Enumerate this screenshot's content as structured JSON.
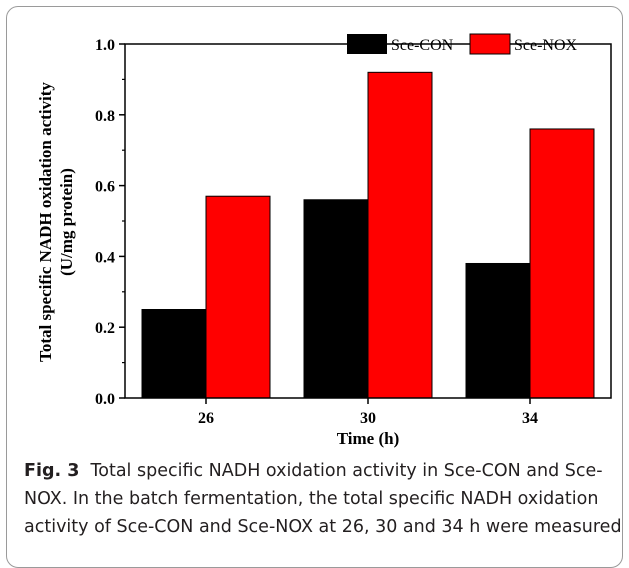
{
  "chart_data": {
    "type": "bar",
    "categories": [
      "26",
      "30",
      "34"
    ],
    "series": [
      {
        "name": "Sce-CON",
        "values": [
          0.25,
          0.56,
          0.38
        ],
        "color": "#000000"
      },
      {
        "name": "Sce-NOX",
        "values": [
          0.57,
          0.92,
          0.76
        ],
        "color": "#ff0000"
      }
    ],
    "xlabel": "Time (h)",
    "ylabel": "Total specific NADH oxidation activity",
    "ylabel_unit": "(U/mg protein)",
    "ylim": [
      0,
      1.0
    ],
    "yticks": [
      "0.0",
      "0.2",
      "0.4",
      "0.6",
      "0.8",
      "1.0"
    ],
    "ytick_values": [
      0,
      0.2,
      0.4,
      0.6,
      0.8,
      1.0
    ],
    "legend_position": "top-right",
    "grid": false
  },
  "caption": {
    "label": "Fig. 3",
    "text": "Total specific NADH oxidation activity in Sce-CON and Sce-NOX. In the batch fermentation, the total specific NADH oxidation activity of Sce-CON and Sce-NOX at 26, 30 and 34 h were measured"
  }
}
